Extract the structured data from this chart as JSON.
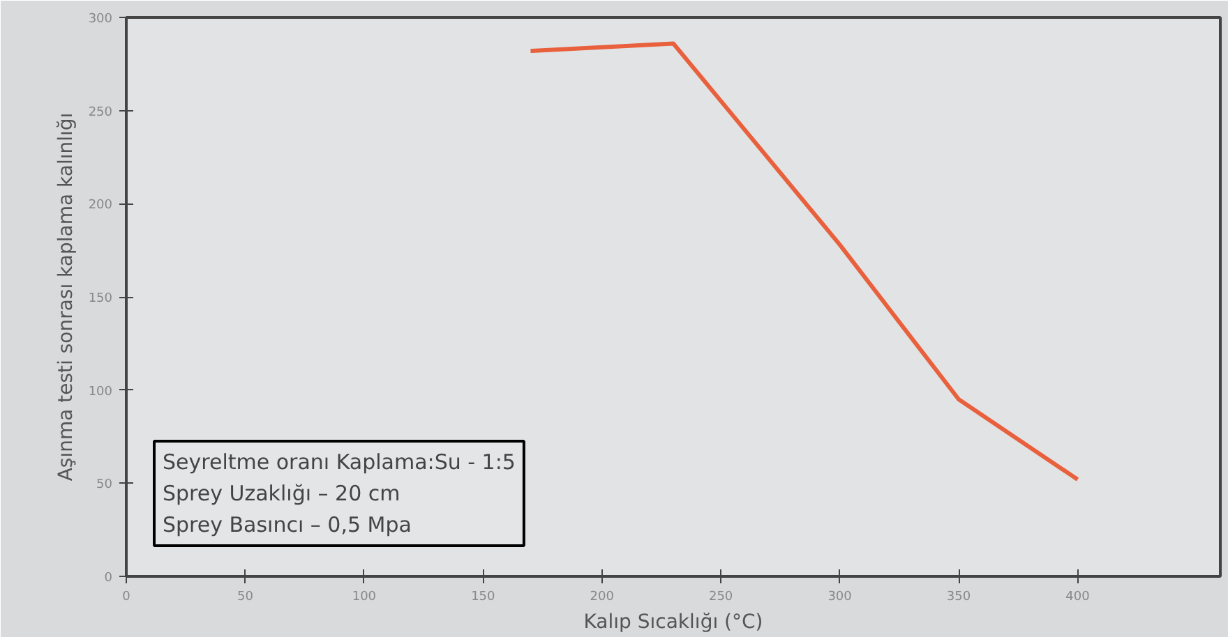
{
  "chart_data": {
    "type": "line",
    "xlabel": "Kalıp Sıcaklığı (°C)",
    "ylabel": "Aşınma testi sonrası kaplama kalınlığı",
    "x": [
      170,
      230,
      300,
      350,
      400
    ],
    "series": [
      {
        "color": "#e8603c",
        "values": [
          282,
          286,
          178,
          95,
          52
        ]
      }
    ],
    "xlim": [
      0,
      460
    ],
    "ylim": [
      0,
      300
    ],
    "xticks": [
      0,
      50,
      100,
      150,
      200,
      250,
      300,
      350,
      400
    ],
    "yticks": [
      0,
      50,
      100,
      150,
      200,
      250,
      300
    ],
    "grid": false,
    "marker": "none",
    "line_style": "solid",
    "annotations": [
      "Seyreltme oranı Kaplama:Su - 1:5",
      "Sprey Uzaklığı – 20 cm",
      "Sprey Basıncı – 0,5 Mpa"
    ]
  }
}
